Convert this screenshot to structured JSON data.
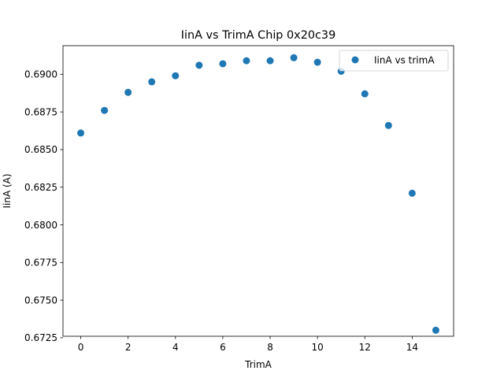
{
  "chart_data": {
    "type": "scatter",
    "title": "IinA vs TrimA Chip 0x20c39",
    "xlabel": "TrimA",
    "ylabel": "IinA (A)",
    "xlim": [
      -0.75,
      15.75
    ],
    "ylim": [
      0.6726,
      0.6919
    ],
    "xticks": [
      0,
      2,
      4,
      6,
      8,
      10,
      12,
      14
    ],
    "xtick_labels": [
      "0",
      "2",
      "4",
      "6",
      "8",
      "10",
      "12",
      "14"
    ],
    "yticks": [
      0.6725,
      0.675,
      0.6775,
      0.68,
      0.6825,
      0.685,
      0.6875,
      0.69
    ],
    "ytick_labels": [
      "0.6725",
      "0.6750",
      "0.6775",
      "0.6800",
      "0.6825",
      "0.6850",
      "0.6875",
      "0.6900"
    ],
    "grid": false,
    "legend_position": "top-right",
    "series": [
      {
        "name": "IinA vs trimA",
        "color": "#1f77b4",
        "x": [
          0,
          1,
          2,
          3,
          4,
          5,
          6,
          7,
          8,
          9,
          10,
          11,
          12,
          13,
          14,
          15
        ],
        "y": [
          0.6861,
          0.6876,
          0.6888,
          0.6895,
          0.6899,
          0.6906,
          0.6907,
          0.6909,
          0.6909,
          0.6911,
          0.6908,
          0.6902,
          0.6887,
          0.6866,
          0.6821,
          0.673
        ]
      }
    ]
  }
}
